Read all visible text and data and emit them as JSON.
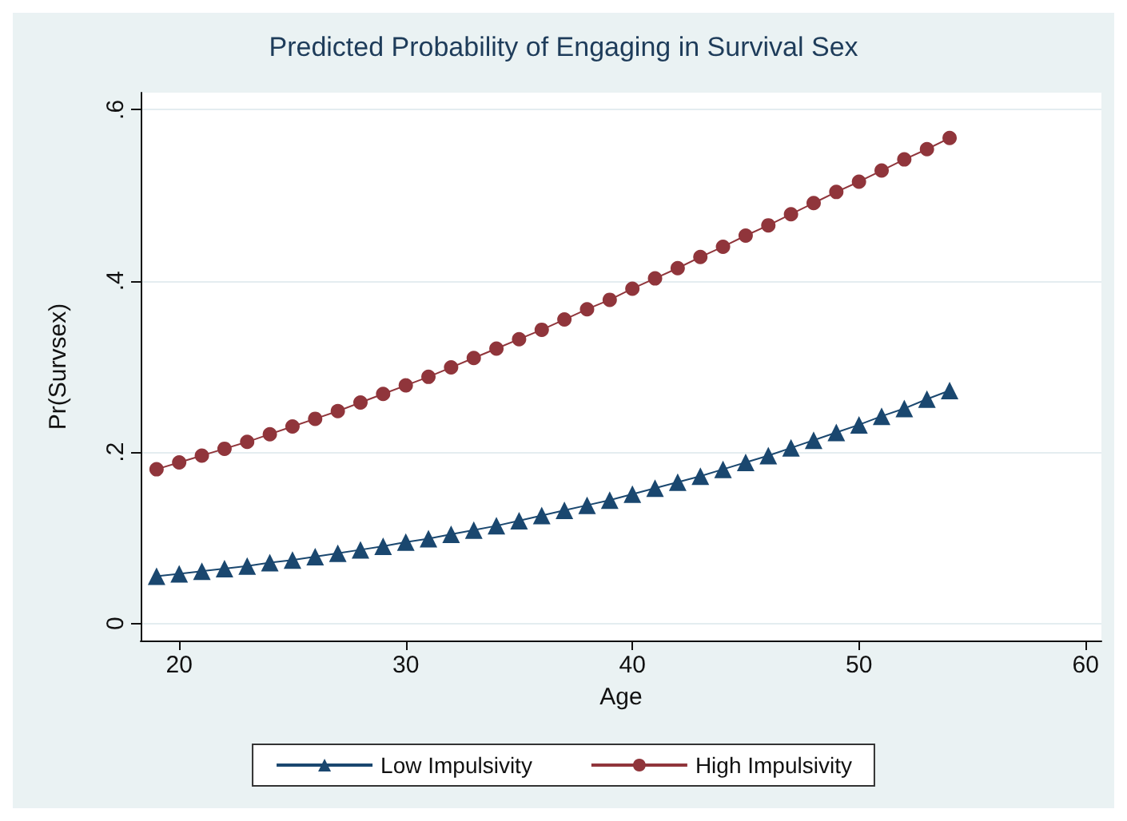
{
  "chart_data": {
    "type": "line",
    "title": "Predicted Probability of Engaging in Survival Sex",
    "xlabel": "Age",
    "ylabel": "Pr(Survsex)",
    "x": [
      19,
      20,
      21,
      22,
      23,
      24,
      25,
      26,
      27,
      28,
      29,
      30,
      31,
      32,
      33,
      34,
      35,
      36,
      37,
      38,
      39,
      40,
      41,
      42,
      43,
      44,
      45,
      46,
      47,
      48,
      49,
      50,
      51,
      52,
      53,
      54
    ],
    "series": [
      {
        "name": "Low Impulsivity",
        "color": "#1a476f",
        "marker": "triangle",
        "values": [
          0.055,
          0.058,
          0.061,
          0.064,
          0.067,
          0.071,
          0.074,
          0.078,
          0.082,
          0.086,
          0.09,
          0.095,
          0.099,
          0.104,
          0.109,
          0.114,
          0.12,
          0.126,
          0.132,
          0.138,
          0.144,
          0.151,
          0.158,
          0.165,
          0.172,
          0.18,
          0.188,
          0.196,
          0.205,
          0.214,
          0.223,
          0.232,
          0.242,
          0.251,
          0.262,
          0.272
        ]
      },
      {
        "name": "High Impulsivity",
        "color": "#90353b",
        "marker": "circle",
        "values": [
          0.18,
          0.188,
          0.196,
          0.204,
          0.212,
          0.221,
          0.23,
          0.239,
          0.248,
          0.258,
          0.268,
          0.278,
          0.288,
          0.299,
          0.31,
          0.321,
          0.332,
          0.343,
          0.355,
          0.367,
          0.378,
          0.391,
          0.403,
          0.415,
          0.428,
          0.44,
          0.453,
          0.465,
          0.478,
          0.491,
          0.504,
          0.516,
          0.529,
          0.542,
          0.554,
          0.567
        ]
      }
    ],
    "xlim": [
      18.3,
      60.7
    ],
    "xticks": [
      20,
      30,
      40,
      50,
      60
    ],
    "ylim": [
      -0.02,
      0.62
    ],
    "yticks": [
      {
        "value": 0,
        "label": "0"
      },
      {
        "value": 0.2,
        "label": ".2"
      },
      {
        "value": 0.4,
        "label": ".4"
      },
      {
        "value": 0.6,
        "label": ".6"
      }
    ],
    "grid": "y",
    "legend": "bottom",
    "line_style": "solid"
  }
}
